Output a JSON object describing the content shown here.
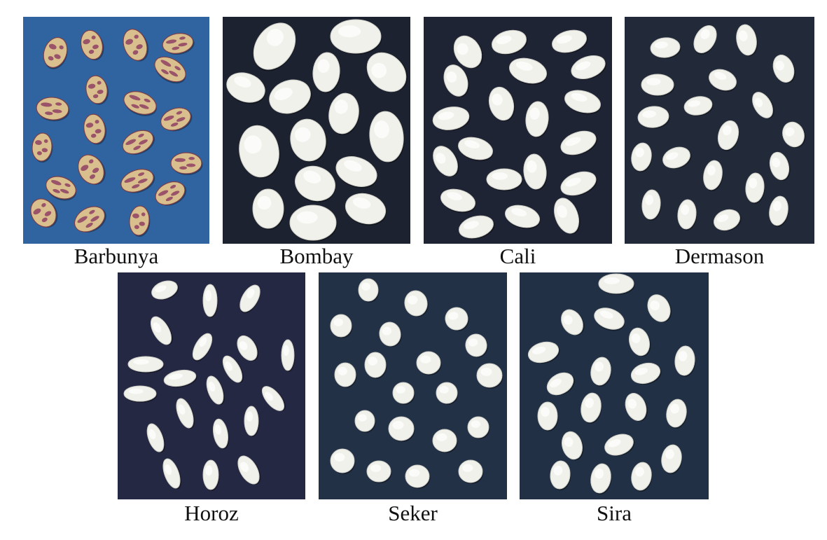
{
  "figure": {
    "panels": [
      {
        "key": "barbunya",
        "label": "Barbunya",
        "background": "#2f64a0",
        "bean": "speckled"
      },
      {
        "key": "bombay",
        "label": "Bombay",
        "background": "#1d2230",
        "bean": "white"
      },
      {
        "key": "cali",
        "label": "Cali",
        "background": "#1f2434",
        "bean": "white"
      },
      {
        "key": "dermason",
        "label": "Dermason",
        "background": "#222a3a",
        "bean": "white"
      },
      {
        "key": "horoz",
        "label": "Horoz",
        "background": "#252842",
        "bean": "white"
      },
      {
        "key": "seker",
        "label": "Seker",
        "background": "#233147",
        "bean": "white"
      },
      {
        "key": "sira",
        "label": "Sira",
        "background": "#213044",
        "bean": "white"
      }
    ]
  }
}
